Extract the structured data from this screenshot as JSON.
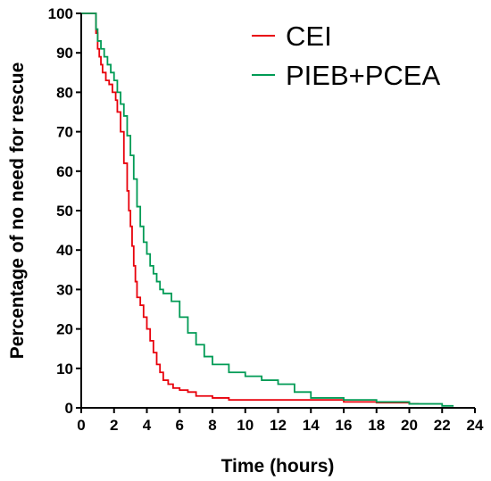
{
  "chart_data": {
    "type": "line",
    "step": true,
    "title": "",
    "xlabel": "Time (hours)",
    "ylabel": "Percentage of no need for rescue",
    "xlim": [
      0,
      24
    ],
    "ylim": [
      0,
      100
    ],
    "xticks": [
      0,
      2,
      4,
      6,
      8,
      10,
      12,
      14,
      16,
      18,
      20,
      22,
      24
    ],
    "yticks": [
      0,
      10,
      20,
      30,
      40,
      50,
      60,
      70,
      80,
      90,
      100
    ],
    "grid": false,
    "legend": "top-right",
    "series": [
      {
        "name": "CEI",
        "color": "#e8000b",
        "x": [
          0,
          0.8,
          0.9,
          1.0,
          1.1,
          1.2,
          1.3,
          1.5,
          1.7,
          1.9,
          2.1,
          2.2,
          2.4,
          2.6,
          2.8,
          2.9,
          3.0,
          3.1,
          3.2,
          3.3,
          3.4,
          3.6,
          3.8,
          4.0,
          4.2,
          4.4,
          4.6,
          4.8,
          5.0,
          5.3,
          5.6,
          6.0,
          6.5,
          7.0,
          8.0,
          9.0,
          10.0,
          12.0,
          14.0,
          16.0,
          18.0,
          20.0,
          20.6
        ],
        "y": [
          100,
          100,
          95,
          91,
          89,
          87,
          85,
          83,
          82,
          80,
          78,
          75,
          70,
          62,
          55,
          50,
          46,
          41,
          36,
          32,
          28,
          26,
          23,
          20,
          17,
          14,
          11,
          9,
          7,
          6,
          5,
          4.5,
          4,
          3,
          2.5,
          2,
          2,
          2,
          2,
          1.5,
          1.3,
          1,
          1
        ]
      },
      {
        "name": "PIEB+PCEA",
        "color": "#009b55",
        "x": [
          0,
          0.8,
          0.9,
          1.0,
          1.2,
          1.4,
          1.6,
          1.8,
          2.0,
          2.2,
          2.4,
          2.6,
          2.8,
          3.0,
          3.2,
          3.4,
          3.6,
          3.8,
          4.0,
          4.2,
          4.4,
          4.6,
          4.8,
          5.0,
          5.5,
          6.0,
          6.5,
          7.0,
          7.5,
          8.0,
          9.0,
          10.0,
          11.0,
          12.0,
          13.0,
          14.0,
          16.0,
          18.0,
          20.0,
          22.0,
          22.7
        ],
        "y": [
          100,
          100,
          96,
          93,
          91,
          89,
          87,
          85,
          83,
          80,
          77,
          74,
          69,
          64,
          58,
          51,
          46,
          42,
          39,
          36,
          34,
          32,
          30,
          29,
          27,
          23,
          19,
          16,
          13,
          11,
          9,
          8,
          7,
          6,
          4,
          2.5,
          2,
          1.5,
          1,
          0.5,
          0.5
        ]
      }
    ]
  }
}
